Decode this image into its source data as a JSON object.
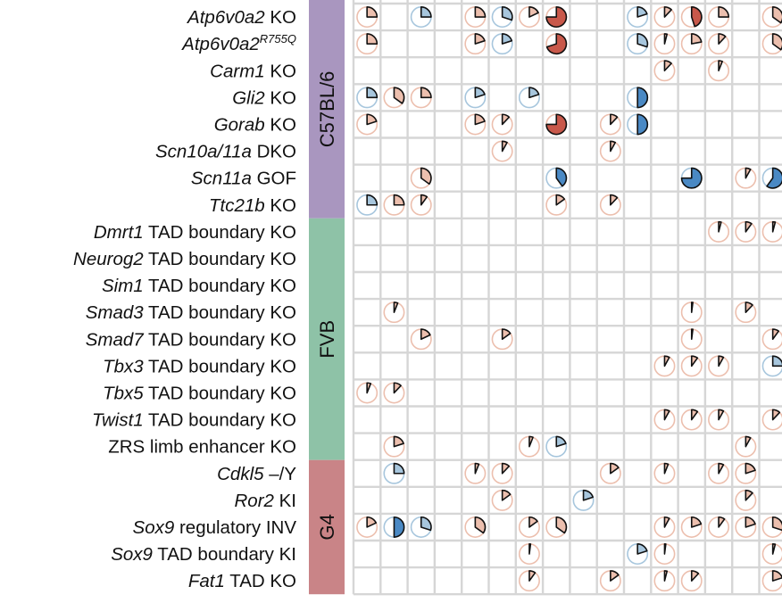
{
  "chart_data": {
    "type": "heatmap",
    "mark": "pie-glyph",
    "description_note": "Matrix of mouse strains (rows) by phenotype columns; each cell shows a pie glyph whose wedge size is the value and whose colour indicates direction (red = increase, blue = decrease).",
    "n_columns": 16,
    "colors": {
      "increase": "#c8584a",
      "increase_ring": "#ecbfae",
      "decrease": "#4a89c4",
      "decrease_ring": "#a7c6dd",
      "neutral_ring": "#dcdcdc",
      "grid": "#d6d6d6",
      "stroke": "#111111"
    },
    "groups": [
      {
        "label": "C57BL/6",
        "color": "#a996bf",
        "rows": [
          0,
          7
        ]
      },
      {
        "label": "FVB",
        "color": "#8ec2a7",
        "rows": [
          8,
          16
        ]
      },
      {
        "label": "G4",
        "color": "#c98487",
        "rows": [
          17,
          21
        ]
      }
    ],
    "rows": [
      {
        "parts": [
          {
            "t": "Atp6v0a2",
            "s": "it"
          },
          {
            "t": " KO"
          }
        ],
        "cells": [
          {
            "c": 0,
            "v": 0.25,
            "d": "up"
          },
          {
            "c": 2,
            "v": 0.25,
            "d": "down"
          },
          {
            "c": 4,
            "v": 0.25,
            "d": "up"
          },
          {
            "c": 5,
            "v": 0.3,
            "d": "down"
          },
          {
            "c": 6,
            "v": 0.18,
            "d": "up"
          },
          {
            "c": 7,
            "v": 0.75,
            "d": "up"
          },
          {
            "c": 10,
            "v": 0.2,
            "d": "down"
          },
          {
            "c": 11,
            "v": 0.12,
            "d": "up"
          },
          {
            "c": 12,
            "v": 0.45,
            "d": "up"
          },
          {
            "c": 13,
            "v": 0.25,
            "d": "up"
          },
          {
            "c": 15,
            "v": 0.35,
            "d": "up"
          }
        ]
      },
      {
        "parts": [
          {
            "t": "Atp6v0a2",
            "s": "it"
          },
          {
            "t": "R755Q",
            "s": "sup"
          }
        ],
        "cells": [
          {
            "c": 0,
            "v": 0.25,
            "d": "up"
          },
          {
            "c": 4,
            "v": 0.2,
            "d": "up"
          },
          {
            "c": 5,
            "v": 0.2,
            "d": "down"
          },
          {
            "c": 7,
            "v": 0.7,
            "d": "up"
          },
          {
            "c": 10,
            "v": 0.3,
            "d": "down"
          },
          {
            "c": 11,
            "v": 0.04,
            "d": "up"
          },
          {
            "c": 12,
            "v": 0.22,
            "d": "up"
          },
          {
            "c": 13,
            "v": 0.12,
            "d": "up"
          },
          {
            "c": 15,
            "v": 0.35,
            "d": "up"
          }
        ]
      },
      {
        "parts": [
          {
            "t": "Carm1",
            "s": "it"
          },
          {
            "t": " KO"
          }
        ],
        "cells": [
          {
            "c": 11,
            "v": 0.12,
            "d": "up"
          },
          {
            "c": 13,
            "v": 0.06,
            "d": "up"
          }
        ]
      },
      {
        "parts": [
          {
            "t": "Gli2",
            "s": "it"
          },
          {
            "t": " KO"
          }
        ],
        "cells": [
          {
            "c": 0,
            "v": 0.25,
            "d": "down"
          },
          {
            "c": 1,
            "v": 0.35,
            "d": "up"
          },
          {
            "c": 2,
            "v": 0.25,
            "d": "up"
          },
          {
            "c": 4,
            "v": 0.2,
            "d": "down"
          },
          {
            "c": 6,
            "v": 0.2,
            "d": "down"
          },
          {
            "c": 10,
            "v": 0.5,
            "d": "down"
          }
        ]
      },
      {
        "parts": [
          {
            "t": "Gorab",
            "s": "it"
          },
          {
            "t": " KO"
          }
        ],
        "cells": [
          {
            "c": 0,
            "v": 0.2,
            "d": "up"
          },
          {
            "c": 4,
            "v": 0.2,
            "d": "up"
          },
          {
            "c": 5,
            "v": 0.12,
            "d": "up"
          },
          {
            "c": 7,
            "v": 0.75,
            "d": "up"
          },
          {
            "c": 9,
            "v": 0.12,
            "d": "up"
          },
          {
            "c": 10,
            "v": 0.5,
            "d": "down"
          }
        ]
      },
      {
        "parts": [
          {
            "t": "Scn10a/11a",
            "s": "it"
          },
          {
            "t": " DKO"
          }
        ],
        "cells": [
          {
            "c": 5,
            "v": 0.08,
            "d": "up"
          },
          {
            "c": 9,
            "v": 0.08,
            "d": "up"
          }
        ]
      },
      {
        "parts": [
          {
            "t": "Scn11a",
            "s": "it"
          },
          {
            "t": " GOF"
          }
        ],
        "cells": [
          {
            "c": 2,
            "v": 0.35,
            "d": "up"
          },
          {
            "c": 7,
            "v": 0.4,
            "d": "down"
          },
          {
            "c": 12,
            "v": 0.75,
            "d": "down"
          },
          {
            "c": 14,
            "v": 0.08,
            "d": "up"
          },
          {
            "c": 15,
            "v": 0.6,
            "d": "down"
          }
        ]
      },
      {
        "parts": [
          {
            "t": "Ttc21b",
            "s": "it"
          },
          {
            "t": " KO"
          }
        ],
        "cells": [
          {
            "c": 0,
            "v": 0.25,
            "d": "down"
          },
          {
            "c": 1,
            "v": 0.25,
            "d": "up"
          },
          {
            "c": 2,
            "v": 0.1,
            "d": "up"
          },
          {
            "c": 7,
            "v": 0.15,
            "d": "up"
          },
          {
            "c": 9,
            "v": 0.12,
            "d": "up"
          }
        ]
      },
      {
        "parts": [
          {
            "t": "Dmrt1",
            "s": "it"
          },
          {
            "t": " TAD boundary KO"
          }
        ],
        "cells": [
          {
            "c": 13,
            "v": 0.04,
            "d": "up"
          },
          {
            "c": 14,
            "v": 0.1,
            "d": "up"
          },
          {
            "c": 15,
            "v": 0.04,
            "d": "up"
          }
        ]
      },
      {
        "parts": [
          {
            "t": "Neurog2",
            "s": "it"
          },
          {
            "t": " TAD boundary KO"
          }
        ],
        "cells": []
      },
      {
        "parts": [
          {
            "t": "Sim1",
            "s": "it"
          },
          {
            "t": " TAD boundary KO"
          }
        ],
        "cells": []
      },
      {
        "parts": [
          {
            "t": "Smad3",
            "s": "it"
          },
          {
            "t": " TAD boundary KO"
          }
        ],
        "cells": [
          {
            "c": 1,
            "v": 0.06,
            "d": "up"
          },
          {
            "c": 12,
            "v": 0.02,
            "d": "up"
          },
          {
            "c": 14,
            "v": 0.12,
            "d": "up"
          }
        ]
      },
      {
        "parts": [
          {
            "t": "Smad7",
            "s": "it"
          },
          {
            "t": " TAD boundary KO"
          }
        ],
        "cells": [
          {
            "c": 2,
            "v": 0.18,
            "d": "up"
          },
          {
            "c": 5,
            "v": 0.15,
            "d": "up"
          },
          {
            "c": 12,
            "v": 0.02,
            "d": "up"
          },
          {
            "c": 15,
            "v": 0.1,
            "d": "up"
          }
        ]
      },
      {
        "parts": [
          {
            "t": "Tbx3",
            "s": "it"
          },
          {
            "t": " TAD boundary KO"
          }
        ],
        "cells": [
          {
            "c": 11,
            "v": 0.08,
            "d": "up"
          },
          {
            "c": 12,
            "v": 0.1,
            "d": "up"
          },
          {
            "c": 13,
            "v": 0.08,
            "d": "up"
          },
          {
            "c": 15,
            "v": 0.25,
            "d": "down"
          }
        ]
      },
      {
        "parts": [
          {
            "t": "Tbx5",
            "s": "it"
          },
          {
            "t": " TAD boundary KO"
          }
        ],
        "cells": [
          {
            "c": 0,
            "v": 0.06,
            "d": "up"
          },
          {
            "c": 1,
            "v": 0.12,
            "d": "up"
          }
        ]
      },
      {
        "parts": [
          {
            "t": "Twist1",
            "s": "it"
          },
          {
            "t": " TAD boundary KO"
          }
        ],
        "cells": [
          {
            "c": 11,
            "v": 0.08,
            "d": "up"
          },
          {
            "c": 12,
            "v": 0.1,
            "d": "up"
          },
          {
            "c": 13,
            "v": 0.08,
            "d": "up"
          },
          {
            "c": 15,
            "v": 0.12,
            "d": "up"
          }
        ]
      },
      {
        "parts": [
          {
            "t": "ZRS limb enhancer KO"
          }
        ],
        "cells": [
          {
            "c": 1,
            "v": 0.2,
            "d": "up"
          },
          {
            "c": 6,
            "v": 0.06,
            "d": "up"
          },
          {
            "c": 7,
            "v": 0.2,
            "d": "down"
          },
          {
            "c": 14,
            "v": 0.08,
            "d": "up"
          }
        ]
      },
      {
        "parts": [
          {
            "t": "Cdkl5",
            "s": "it"
          },
          {
            "t": " –/Y"
          }
        ],
        "cells": [
          {
            "c": 1,
            "v": 0.25,
            "d": "down"
          },
          {
            "c": 4,
            "v": 0.06,
            "d": "up"
          },
          {
            "c": 5,
            "v": 0.12,
            "d": "up"
          },
          {
            "c": 9,
            "v": 0.15,
            "d": "up"
          },
          {
            "c": 11,
            "v": 0.06,
            "d": "up"
          },
          {
            "c": 13,
            "v": 0.08,
            "d": "up"
          },
          {
            "c": 14,
            "v": 0.2,
            "d": "up"
          }
        ]
      },
      {
        "parts": [
          {
            "t": "Ror2",
            "s": "it"
          },
          {
            "t": " KI"
          }
        ],
        "cells": [
          {
            "c": 5,
            "v": 0.15,
            "d": "up"
          },
          {
            "c": 8,
            "v": 0.2,
            "d": "down"
          },
          {
            "c": 14,
            "v": 0.12,
            "d": "up"
          }
        ]
      },
      {
        "parts": [
          {
            "t": "Sox9",
            "s": "it"
          },
          {
            "t": " regulatory INV"
          }
        ],
        "cells": [
          {
            "c": 0,
            "v": 0.18,
            "d": "up"
          },
          {
            "c": 1,
            "v": 0.5,
            "d": "down"
          },
          {
            "c": 2,
            "v": 0.3,
            "d": "down"
          },
          {
            "c": 4,
            "v": 0.35,
            "d": "up"
          },
          {
            "c": 6,
            "v": 0.15,
            "d": "up"
          },
          {
            "c": 7,
            "v": 0.35,
            "d": "up"
          },
          {
            "c": 11,
            "v": 0.08,
            "d": "up"
          },
          {
            "c": 12,
            "v": 0.2,
            "d": "up"
          },
          {
            "c": 13,
            "v": 0.1,
            "d": "up"
          },
          {
            "c": 14,
            "v": 0.2,
            "d": "up"
          },
          {
            "c": 15,
            "v": 0.3,
            "d": "up"
          }
        ]
      },
      {
        "parts": [
          {
            "t": "Sox9",
            "s": "it"
          },
          {
            "t": " TAD boundary KI"
          }
        ],
        "cells": [
          {
            "c": 6,
            "v": 0.02,
            "d": "up"
          },
          {
            "c": 10,
            "v": 0.2,
            "d": "down"
          },
          {
            "c": 11,
            "v": 0.02,
            "d": "up"
          },
          {
            "c": 15,
            "v": 0.04,
            "d": "up"
          }
        ]
      },
      {
        "parts": [
          {
            "t": "Fat1",
            "s": "it"
          },
          {
            "t": " TAD KO"
          }
        ],
        "cells": [
          {
            "c": 6,
            "v": 0.1,
            "d": "up"
          },
          {
            "c": 9,
            "v": 0.15,
            "d": "up"
          },
          {
            "c": 11,
            "v": 0.04,
            "d": "up"
          },
          {
            "c": 12,
            "v": 0.12,
            "d": "up"
          },
          {
            "c": 15,
            "v": 0.2,
            "d": "up"
          }
        ]
      }
    ]
  }
}
